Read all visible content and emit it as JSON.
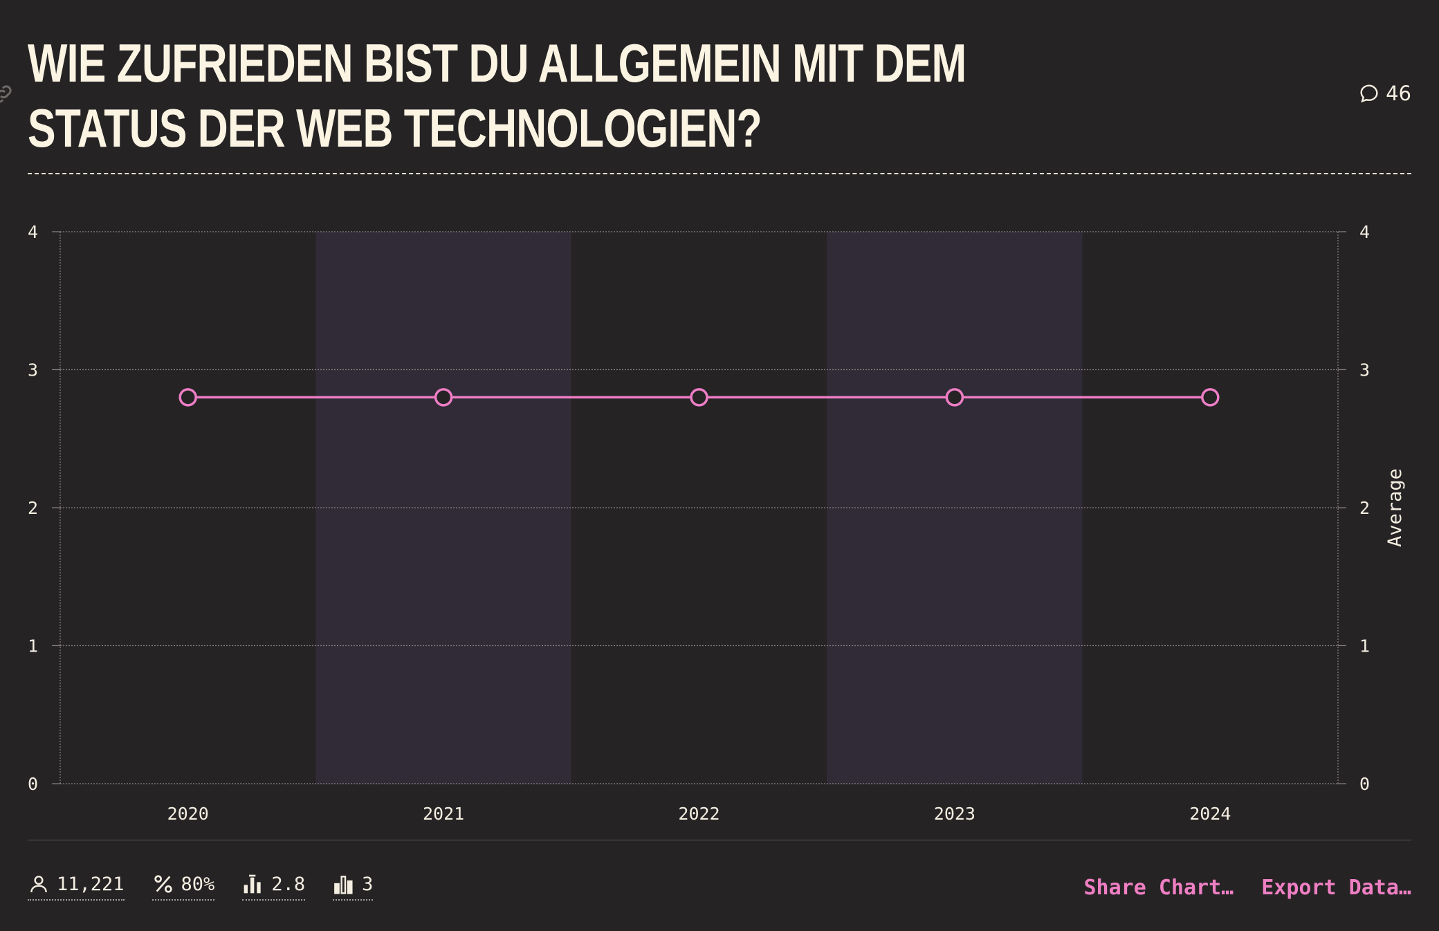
{
  "title": "Wie zufrieden bist du allgemein mit dem Status der Web Technologien?",
  "comments_count": "46",
  "chart_data": {
    "type": "line",
    "x": [
      "2020",
      "2021",
      "2022",
      "2023",
      "2024"
    ],
    "series": [
      {
        "values": [
          2.8,
          2.8,
          2.8,
          2.8,
          2.8
        ],
        "color": "#ee7ec6"
      }
    ],
    "ylim": [
      0,
      4
    ],
    "yticks": [
      "0",
      "1",
      "2",
      "3",
      "4"
    ],
    "ylabel_right": "Average",
    "grid": true,
    "band_colors": [
      "#262325",
      "#302b36"
    ]
  },
  "stats": {
    "respondents": "11,221",
    "percentage": "80%",
    "average": "2.8",
    "buckets": "3"
  },
  "actions": {
    "share": "Share Chart…",
    "export": "Export Data…"
  },
  "colors": {
    "background": "#262325",
    "accent": "#ef7fc3",
    "text": "#f5efe2"
  }
}
